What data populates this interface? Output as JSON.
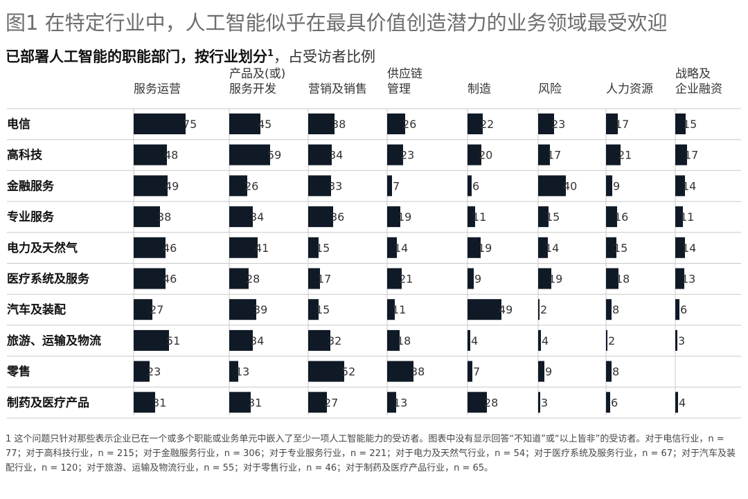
{
  "title": "图1 在特定行业中，人工智能似乎在最具价值创造潜力的业务领域最受欢迎",
  "subtitle": {
    "bold": "已部署人工智能的职能部门，按行业划分",
    "sup": "1",
    "rest": "，占受访者比例"
  },
  "footnote": "1 这个问题只针对那些表示企业已在一个或多个职能或业务单元中嵌入了至少一项人工智能能力的受访者。图表中没有显示回答“不知道”或“以上皆非”的受访者。对于电信行业，n = 77；对于高科技行业，n = 215；对于金融服务行业，n = 306；对于专业服务行业，n = 221；对于电力及天然气行业，n = 54；对于医疗系统及服务行业，n = 67；对于汽车及装配行业，n = 120；对于旅游、运输及物流行业，n = 55；对于零售行业，n = 46；对于制药及医疗产品行业，n = 65。",
  "colors": {
    "bar": "#0f1a26",
    "grid": "#c8c8c8",
    "title": "#6d6d6d"
  },
  "chart_data": {
    "type": "bar",
    "orientation": "horizontal-small-multiples",
    "value_unit": "% of respondents",
    "columns": [
      [
        "服务运营"
      ],
      [
        "产品及(或)",
        "服务开发"
      ],
      [
        "营销及销售"
      ],
      [
        "供应链",
        "管理"
      ],
      [
        "制造"
      ],
      [
        "风险"
      ],
      [
        "人力资源"
      ],
      [
        "战略及",
        "企业融资"
      ]
    ],
    "rows": [
      "电信",
      "高科技",
      "金融服务",
      "专业服务",
      "电力及天然气",
      "医疗系统及服务",
      "汽车及装配",
      "旅游、运输及物流",
      "零售",
      "制药及医疗产品"
    ],
    "values": [
      [
        75,
        45,
        38,
        26,
        22,
        23,
        17,
        15
      ],
      [
        48,
        59,
        34,
        23,
        20,
        17,
        21,
        17
      ],
      [
        49,
        26,
        33,
        7,
        6,
        40,
        9,
        14
      ],
      [
        38,
        34,
        36,
        19,
        11,
        15,
        16,
        11
      ],
      [
        46,
        41,
        15,
        14,
        19,
        14,
        15,
        14
      ],
      [
        46,
        28,
        17,
        21,
        9,
        19,
        18,
        13
      ],
      [
        27,
        39,
        15,
        11,
        49,
        2,
        8,
        6
      ],
      [
        51,
        34,
        32,
        18,
        4,
        4,
        2,
        3
      ],
      [
        23,
        13,
        52,
        38,
        7,
        9,
        8,
        null
      ],
      [
        31,
        31,
        27,
        13,
        28,
        3,
        6,
        4
      ]
    ]
  }
}
